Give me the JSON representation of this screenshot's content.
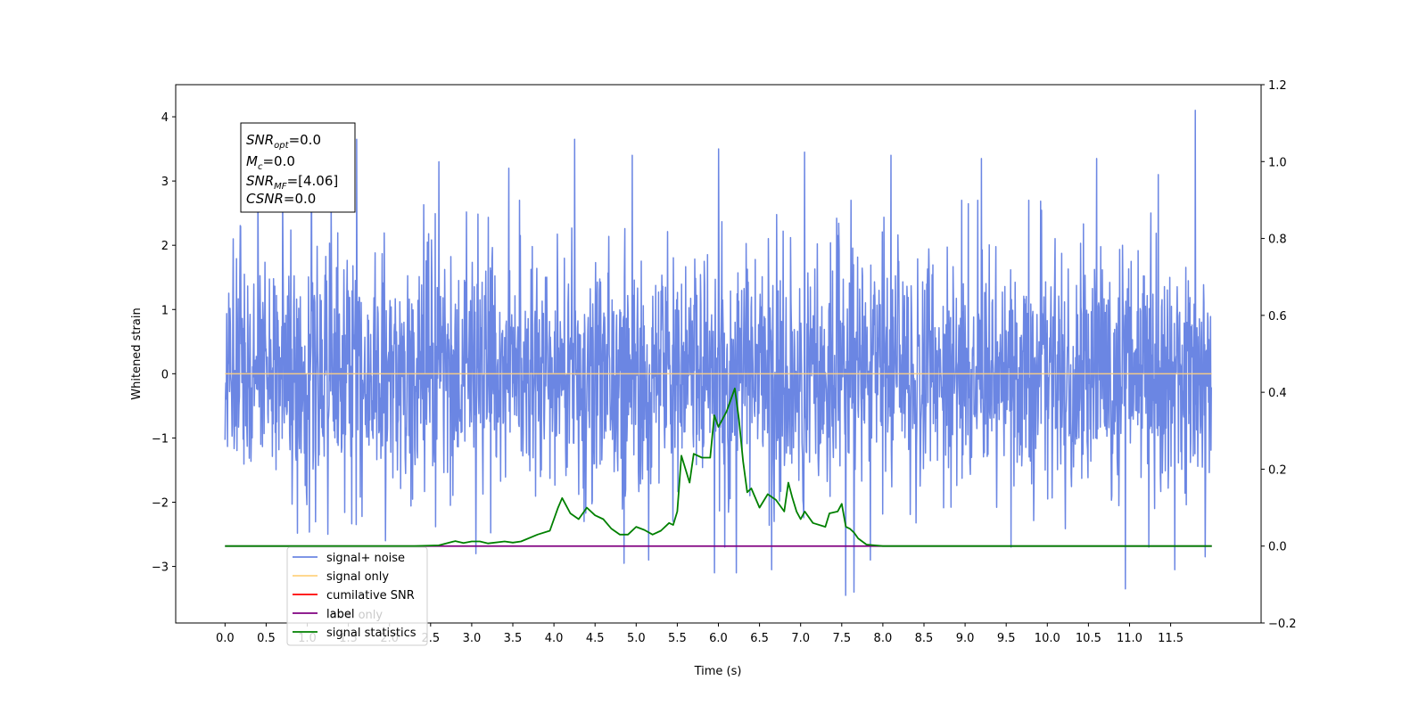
{
  "chart_data": {
    "type": "line",
    "xlabel": "Time (s)",
    "ylabel": "Whitened strain",
    "xlim": [
      -0.6,
      12.6
    ],
    "ylim": [
      -3.88,
      4.5
    ],
    "y2lim": [
      -0.2,
      1.2
    ],
    "x_ticks": [
      "0.0",
      "0.5",
      "1.0",
      "1.5",
      "2.0",
      "2.5",
      "3.0",
      "3.5",
      "4.0",
      "4.5",
      "5.0",
      "5.5",
      "6.0",
      "6.5",
      "7.0",
      "7.5",
      "8.0",
      "8.5",
      "9.0",
      "9.5",
      "10.0",
      "10.5",
      "11.0",
      "11.5"
    ],
    "y_ticks": [
      "−3",
      "−2",
      "−1",
      "0",
      "1",
      "2",
      "3",
      "4"
    ],
    "y2_ticks": [
      "−0.2",
      "0.0",
      "0.2",
      "0.4",
      "0.6",
      "0.8",
      "1.0",
      "1.2"
    ],
    "annotation": {
      "lines": [
        {
          "sym": "SNR",
          "sub": "opt",
          "val": "=0.0"
        },
        {
          "sym": "M",
          "sub": "c",
          "val": "=0.0"
        },
        {
          "sym": "SNR",
          "sub": "MF",
          "val": "=[4.06]"
        },
        {
          "sym": "CSNR",
          "sub": "",
          "val": "=0.0"
        }
      ]
    },
    "legend": {
      "placement": "lower-left",
      "entries": [
        {
          "name": "signal+ noise",
          "color": "#6b86e3"
        },
        {
          "name": "signal only",
          "color": "#ffd27f"
        },
        {
          "name": "cumilative SNR",
          "color": "#ff0000"
        },
        {
          "name": "label",
          "color": "#800080"
        },
        {
          "name": "signal statistics",
          "color": "#008000"
        }
      ],
      "ghost_text": "label only"
    },
    "series": [
      {
        "name": "signal+ noise",
        "axis": "left",
        "color": "#6b86e3",
        "x_range": [
          0,
          12.0
        ],
        "mean": 0.0,
        "approx_std": 0.95,
        "peak_points": [
          {
            "x": 0.1,
            "y": 2.1
          },
          {
            "x": 0.4,
            "y": 3.0
          },
          {
            "x": 0.7,
            "y": 2.8
          },
          {
            "x": 1.05,
            "y": 3.75
          },
          {
            "x": 1.25,
            "y": -2.5
          },
          {
            "x": 1.6,
            "y": 3.65
          },
          {
            "x": 1.95,
            "y": -2.6
          },
          {
            "x": 2.6,
            "y": 3.3
          },
          {
            "x": 3.05,
            "y": -2.8
          },
          {
            "x": 3.45,
            "y": 3.2
          },
          {
            "x": 4.25,
            "y": 3.65
          },
          {
            "x": 4.85,
            "y": -2.95
          },
          {
            "x": 4.95,
            "y": 3.4
          },
          {
            "x": 5.15,
            "y": -2.9
          },
          {
            "x": 5.95,
            "y": -3.1
          },
          {
            "x": 6.0,
            "y": 3.5
          },
          {
            "x": 6.22,
            "y": -3.1
          },
          {
            "x": 6.65,
            "y": -3.05
          },
          {
            "x": 7.05,
            "y": 3.45
          },
          {
            "x": 7.55,
            "y": -3.45
          },
          {
            "x": 7.65,
            "y": -3.4
          },
          {
            "x": 7.85,
            "y": -2.9
          },
          {
            "x": 8.1,
            "y": 3.4
          },
          {
            "x": 9.2,
            "y": 3.35
          },
          {
            "x": 10.6,
            "y": 3.35
          },
          {
            "x": 10.95,
            "y": -3.35
          },
          {
            "x": 11.35,
            "y": 3.1
          },
          {
            "x": 11.55,
            "y": -3.05
          },
          {
            "x": 11.8,
            "y": 4.1
          },
          {
            "x": 11.92,
            "y": -2.85
          }
        ]
      },
      {
        "name": "signal only",
        "axis": "left",
        "color": "#ffd27f",
        "x": [
          0,
          12.0
        ],
        "y": [
          0,
          0
        ]
      },
      {
        "name": "label",
        "axis": "right",
        "color": "#800080",
        "x": [
          0,
          12.0
        ],
        "y": [
          0,
          0
        ]
      },
      {
        "name": "signal statistics",
        "axis": "right",
        "color": "#008000",
        "x": [
          0.0,
          2.3,
          2.6,
          2.8,
          2.9,
          3.0,
          3.1,
          3.2,
          3.4,
          3.5,
          3.6,
          3.8,
          3.95,
          4.05,
          4.1,
          4.2,
          4.3,
          4.4,
          4.5,
          4.6,
          4.7,
          4.8,
          4.9,
          5.0,
          5.1,
          5.2,
          5.3,
          5.4,
          5.45,
          5.5,
          5.55,
          5.6,
          5.65,
          5.7,
          5.8,
          5.9,
          5.95,
          6.0,
          6.1,
          6.2,
          6.25,
          6.3,
          6.35,
          6.4,
          6.5,
          6.6,
          6.7,
          6.8,
          6.85,
          6.9,
          6.95,
          7.0,
          7.05,
          7.15,
          7.3,
          7.35,
          7.45,
          7.5,
          7.55,
          7.6,
          7.65,
          7.7,
          7.8,
          7.9,
          8.0,
          8.5,
          12.0
        ],
        "y": [
          0.0,
          0.0,
          0.002,
          0.013,
          0.008,
          0.012,
          0.012,
          0.007,
          0.012,
          0.009,
          0.012,
          0.03,
          0.04,
          0.1,
          0.125,
          0.085,
          0.07,
          0.1,
          0.08,
          0.07,
          0.045,
          0.03,
          0.03,
          0.05,
          0.042,
          0.03,
          0.04,
          0.06,
          0.055,
          0.09,
          0.235,
          0.2,
          0.165,
          0.24,
          0.23,
          0.23,
          0.34,
          0.31,
          0.35,
          0.41,
          0.33,
          0.22,
          0.14,
          0.15,
          0.1,
          0.135,
          0.12,
          0.09,
          0.165,
          0.125,
          0.09,
          0.07,
          0.09,
          0.06,
          0.05,
          0.085,
          0.09,
          0.11,
          0.05,
          0.045,
          0.035,
          0.02,
          0.004,
          0.002,
          0.0,
          0.0,
          0.0
        ]
      }
    ]
  }
}
